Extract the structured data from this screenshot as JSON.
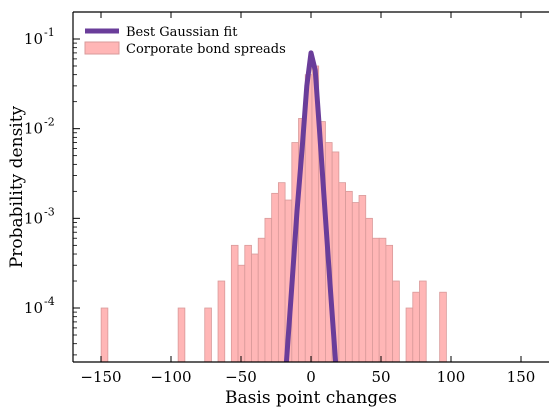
{
  "chart_data": {
    "type": "bar",
    "xlabel": "Basis point changes",
    "ylabel": "Probability density",
    "xlim": [
      -170,
      170
    ],
    "ylim": [
      2.5e-05,
      0.2
    ],
    "yscale": "log",
    "grid": false,
    "legend_position": "top-left",
    "x_ticks": [
      {
        "value": -150,
        "label": "−150"
      },
      {
        "value": -100,
        "label": "−100"
      },
      {
        "value": -50,
        "label": "−50"
      },
      {
        "value": 0,
        "label": "0"
      },
      {
        "value": 50,
        "label": "50"
      },
      {
        "value": 100,
        "label": "100"
      },
      {
        "value": 150,
        "label": "150"
      }
    ],
    "y_ticks": [
      {
        "value": 0.1,
        "base": "10",
        "exp": "-1"
      },
      {
        "value": 0.01,
        "base": "10",
        "exp": "-2"
      },
      {
        "value": 0.001,
        "base": "10",
        "exp": "-3"
      },
      {
        "value": 0.0001,
        "base": "10",
        "exp": "-4"
      }
    ],
    "series": [
      {
        "name": "Corporate bond spreads",
        "kind": "histogram",
        "color": "#ffb6b6",
        "edge_color": "#d99a9a",
        "bin_width": 4.8,
        "bars": [
          {
            "x": -147.5,
            "y": 0.0001
          },
          {
            "x": -92.5,
            "y": 0.0001
          },
          {
            "x": -73.5,
            "y": 0.0001
          },
          {
            "x": -64,
            "y": 0.0002
          },
          {
            "x": -54.5,
            "y": 0.0005
          },
          {
            "x": -49.7,
            "y": 0.0003
          },
          {
            "x": -44.9,
            "y": 0.0005
          },
          {
            "x": -40.1,
            "y": 0.0004
          },
          {
            "x": -35.3,
            "y": 0.0006
          },
          {
            "x": -30.5,
            "y": 0.001
          },
          {
            "x": -25.7,
            "y": 0.0019
          },
          {
            "x": -20.9,
            "y": 0.0025
          },
          {
            "x": -16.1,
            "y": 0.0016
          },
          {
            "x": -11.3,
            "y": 0.007
          },
          {
            "x": -6.5,
            "y": 0.013
          },
          {
            "x": -1.7,
            "y": 0.04
          },
          {
            "x": 3.1,
            "y": 0.05
          },
          {
            "x": 7.9,
            "y": 0.012
          },
          {
            "x": 12.7,
            "y": 0.007
          },
          {
            "x": 17.5,
            "y": 0.0055
          },
          {
            "x": 22.3,
            "y": 0.0025
          },
          {
            "x": 27.1,
            "y": 0.002
          },
          {
            "x": 31.9,
            "y": 0.0015
          },
          {
            "x": 36.7,
            "y": 0.0018
          },
          {
            "x": 41.5,
            "y": 0.001
          },
          {
            "x": 46.3,
            "y": 0.0006
          },
          {
            "x": 51.1,
            "y": 0.0006
          },
          {
            "x": 55.9,
            "y": 0.0005
          },
          {
            "x": 60.7,
            "y": 0.0002
          },
          {
            "x": 70.3,
            "y": 0.0001
          },
          {
            "x": 75.1,
            "y": 0.00015
          },
          {
            "x": 79.9,
            "y": 0.0002
          },
          {
            "x": 94.3,
            "y": 0.00015
          }
        ]
      },
      {
        "name": "Best Gaussian fit",
        "kind": "line",
        "color": "#6a3d9a",
        "points": [
          {
            "x": -18,
            "y": 2e-05
          },
          {
            "x": -14,
            "y": 0.00015
          },
          {
            "x": -10,
            "y": 0.0012
          },
          {
            "x": -6,
            "y": 0.007
          },
          {
            "x": -3,
            "y": 0.03
          },
          {
            "x": 0,
            "y": 0.07
          },
          {
            "x": 3,
            "y": 0.045
          },
          {
            "x": 6,
            "y": 0.01
          },
          {
            "x": 10,
            "y": 0.0012
          },
          {
            "x": 14,
            "y": 0.00015
          },
          {
            "x": 18,
            "y": 2e-05
          }
        ]
      }
    ]
  },
  "legend": {
    "entries": [
      {
        "label": "Best Gaussian fit",
        "kind": "line",
        "color": "#6a3d9a"
      },
      {
        "label": "Corporate bond spreads",
        "kind": "patch",
        "color": "#ffb6b6"
      }
    ]
  }
}
